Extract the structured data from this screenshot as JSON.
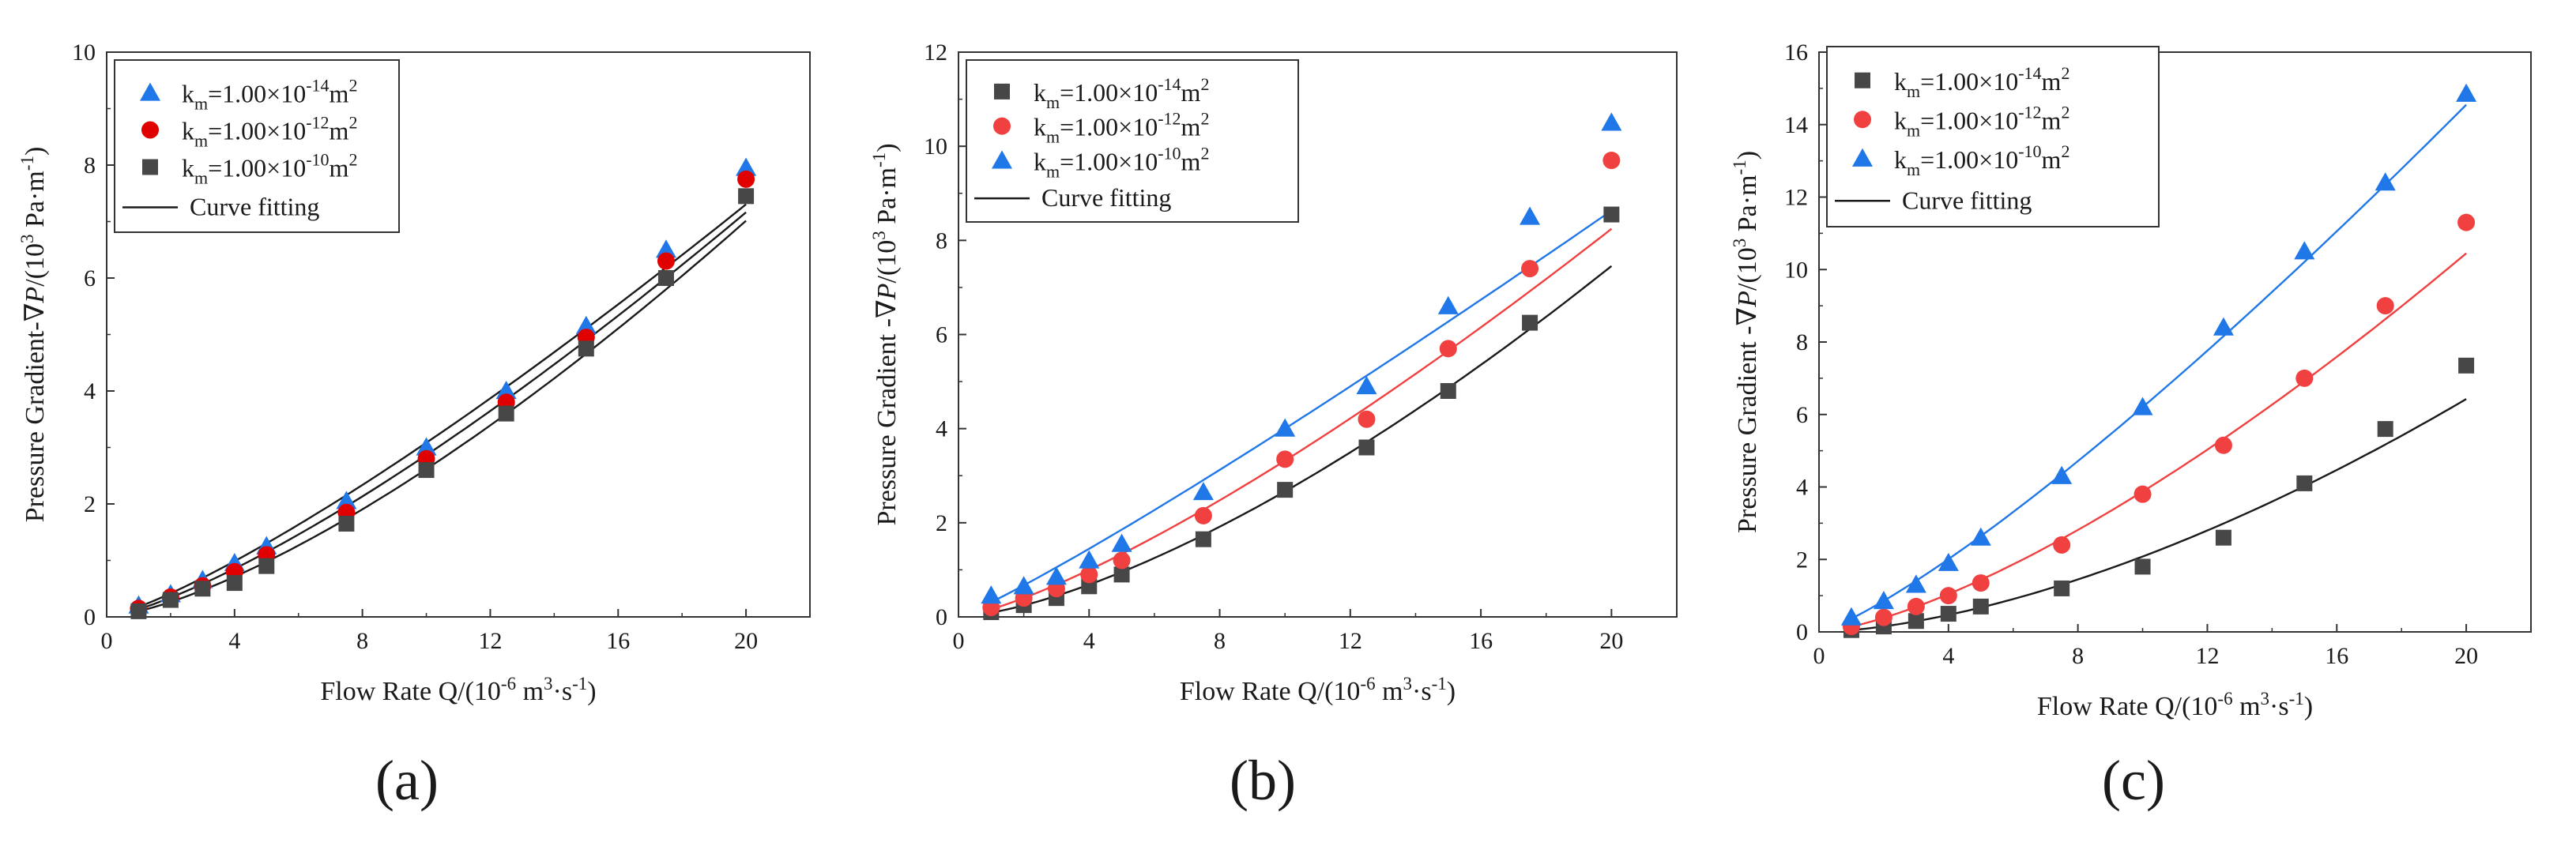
{
  "chart_data": [
    {
      "type": "scatter",
      "panel_label": "(a)",
      "xlabel": "Flow Rate Q/(10",
      "xlabel_exp": "-6",
      "xlabel_tail": " m",
      "xlabel_exp2": "3",
      "xlabel_tail2": "·s",
      "xlabel_exp3": "-1",
      "xlabel_end": ")",
      "ylabel": "Pressure Gradient-∇",
      "ylabel_italic": "P",
      "ylabel_tail": "/(10",
      "ylabel_exp": "3",
      "ylabel_tail2": " Pa·m",
      "ylabel_exp2": "-1",
      "ylabel_end": ")",
      "xlim": [
        0,
        22
      ],
      "ylim": [
        0,
        10
      ],
      "xticks": [
        "0",
        "4",
        "8",
        "12",
        "16",
        "20"
      ],
      "xtick_values": [
        0,
        4,
        8,
        12,
        16,
        20
      ],
      "yticks": [
        "0",
        "2",
        "4",
        "6",
        "8",
        "10"
      ],
      "ytick_values": [
        0,
        2,
        4,
        6,
        8,
        10
      ],
      "legend_position": "top-left",
      "x": [
        1,
        2,
        3,
        4,
        5,
        7.5,
        10,
        12.5,
        15,
        17.5,
        20
      ],
      "series": [
        {
          "name_prefix": "k",
          "name_sub": "m",
          "name_mid": "=1.00×10",
          "name_exp": "-14",
          "name_unit": "m",
          "name_unit_exp": "2",
          "marker": "triangle",
          "color": "#1f77e8",
          "values": [
            0.2,
            0.4,
            0.65,
            0.95,
            1.25,
            2.05,
            3.0,
            4.0,
            5.15,
            6.5,
            7.95
          ]
        },
        {
          "name_prefix": "k",
          "name_sub": "m",
          "name_mid": "=1.00×10",
          "name_exp": "-12",
          "name_unit": "m",
          "name_unit_exp": "2",
          "marker": "circle",
          "color": "#e00000",
          "values": [
            0.15,
            0.35,
            0.55,
            0.8,
            1.1,
            1.85,
            2.8,
            3.8,
            4.95,
            6.3,
            7.75
          ]
        },
        {
          "name_prefix": "k",
          "name_sub": "m",
          "name_mid": "=1.00×10",
          "name_exp": "-10",
          "name_unit": "m",
          "name_unit_exp": "2",
          "marker": "square",
          "color": "#474747",
          "values": [
            0.1,
            0.3,
            0.5,
            0.6,
            0.9,
            1.65,
            2.6,
            3.6,
            4.75,
            6.0,
            7.45
          ]
        }
      ],
      "fit_label": "Curve fitting",
      "fit_color": "#1a1a1a"
    },
    {
      "type": "scatter",
      "panel_label": "(b)",
      "xlabel": "Flow Rate Q/(10",
      "xlabel_exp": "-6",
      "xlabel_tail": " m",
      "xlabel_exp2": "3",
      "xlabel_tail2": "·s",
      "xlabel_exp3": "-1",
      "xlabel_end": ")",
      "ylabel": "Pressure Gradient -∇",
      "ylabel_italic": "P",
      "ylabel_tail": "/(10",
      "ylabel_exp": "3",
      "ylabel_tail2": " Pa·m",
      "ylabel_exp2": "-1",
      "ylabel_end": ")",
      "xlim": [
        0,
        22
      ],
      "ylim": [
        0,
        12
      ],
      "xticks": [
        "0",
        "4",
        "8",
        "12",
        "16",
        "20"
      ],
      "xtick_values": [
        0,
        4,
        8,
        12,
        16,
        20
      ],
      "yticks": [
        "0",
        "2",
        "4",
        "6",
        "8",
        "10",
        "12"
      ],
      "ytick_values": [
        0,
        2,
        4,
        6,
        8,
        10,
        12
      ],
      "legend_position": "top-left",
      "x": [
        1,
        2,
        3,
        4,
        5,
        7.5,
        10,
        12.5,
        15,
        17.5,
        20
      ],
      "series": [
        {
          "name_prefix": "k",
          "name_sub": "m",
          "name_mid": "=1.00×10",
          "name_exp": "-14",
          "name_unit": "m",
          "name_unit_exp": "2",
          "marker": "square",
          "color": "#474747",
          "values": [
            0.1,
            0.25,
            0.4,
            0.65,
            0.9,
            1.65,
            2.7,
            3.6,
            4.8,
            6.25,
            8.55
          ]
        },
        {
          "name_prefix": "k",
          "name_sub": "m",
          "name_mid": "=1.00×10",
          "name_exp": "-12",
          "name_unit": "m",
          "name_unit_exp": "2",
          "marker": "circle",
          "color": "#f04040",
          "values": [
            0.2,
            0.4,
            0.6,
            0.9,
            1.2,
            2.15,
            3.35,
            4.2,
            5.7,
            7.4,
            9.7
          ]
        },
        {
          "name_prefix": "k",
          "name_sub": "m",
          "name_mid": "=1.00×10",
          "name_exp": "-10",
          "name_unit": "m",
          "name_unit_exp": "2",
          "marker": "triangle",
          "color": "#1f77e8",
          "values": [
            0.45,
            0.65,
            0.85,
            1.2,
            1.55,
            2.65,
            4.0,
            4.9,
            6.6,
            8.5,
            10.5
          ]
        }
      ],
      "fit_label": "Curve fitting",
      "fit_color": "#1a1a1a"
    },
    {
      "type": "scatter",
      "panel_label": "(c)",
      "xlabel": "Flow Rate Q/(10",
      "xlabel_exp": "-6",
      "xlabel_tail": " m",
      "xlabel_exp2": "3",
      "xlabel_tail2": "·s",
      "xlabel_exp3": "-1",
      "xlabel_end": ")",
      "ylabel": "Pressure Gradient -∇",
      "ylabel_italic": "P",
      "ylabel_tail": "/(10",
      "ylabel_exp": "3",
      "ylabel_tail2": " Pa·m",
      "ylabel_exp2": "-1",
      "ylabel_end": ")",
      "xlim": [
        0,
        22
      ],
      "ylim": [
        0,
        16
      ],
      "xticks": [
        "0",
        "4",
        "8",
        "12",
        "16",
        "20"
      ],
      "xtick_values": [
        0,
        4,
        8,
        12,
        16,
        20
      ],
      "yticks": [
        "0",
        "2",
        "4",
        "6",
        "8",
        "10",
        "12",
        "14",
        "16"
      ],
      "ytick_values": [
        0,
        2,
        4,
        6,
        8,
        10,
        12,
        14,
        16
      ],
      "legend_position": "top-left",
      "x": [
        1,
        2,
        3,
        4,
        5,
        7.5,
        10,
        12.5,
        15,
        17.5,
        20
      ],
      "series": [
        {
          "name_prefix": "k",
          "name_sub": "m",
          "name_mid": "=1.00×10",
          "name_exp": "-14",
          "name_unit": "m",
          "name_unit_exp": "2",
          "marker": "square",
          "color": "#474747",
          "values": [
            0.05,
            0.15,
            0.3,
            0.5,
            0.7,
            1.2,
            1.8,
            2.6,
            4.1,
            5.6,
            7.35
          ]
        },
        {
          "name_prefix": "k",
          "name_sub": "m",
          "name_mid": "=1.00×10",
          "name_exp": "-12",
          "name_unit": "m",
          "name_unit_exp": "2",
          "marker": "circle",
          "color": "#f04040",
          "values": [
            0.15,
            0.4,
            0.7,
            1.0,
            1.35,
            2.4,
            3.8,
            5.15,
            7.0,
            9.0,
            11.3
          ]
        },
        {
          "name_prefix": "k",
          "name_sub": "m",
          "name_mid": "=1.00×10",
          "name_exp": "-10",
          "name_unit": "m",
          "name_unit_exp": "2",
          "marker": "triangle",
          "color": "#1f77e8",
          "values": [
            0.4,
            0.85,
            1.3,
            1.9,
            2.6,
            4.3,
            6.2,
            8.4,
            10.5,
            12.4,
            14.85
          ]
        }
      ],
      "fit_label": "Curve fitting",
      "fit_color": "#1a1a1a"
    }
  ]
}
